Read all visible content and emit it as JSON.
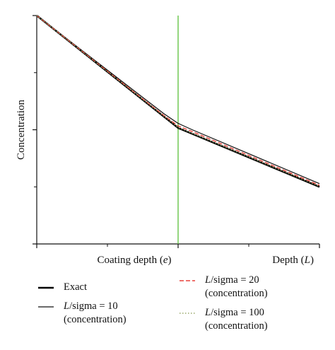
{
  "chart_data": {
    "type": "line",
    "xlabel_parts": [
      {
        "text": "Coating depth (",
        "italic": false
      },
      {
        "text": "e",
        "italic": true
      },
      {
        "text": ")",
        "italic": false
      }
    ],
    "xlabel_end_parts": [
      {
        "text": "Depth (",
        "italic": false
      },
      {
        "text": "L",
        "italic": true
      },
      {
        "text": ")",
        "italic": false
      }
    ],
    "ylabel": "Concentration",
    "xlim": [
      0,
      1
    ],
    "ylim": [
      0,
      1
    ],
    "coating_depth_x": 0.5,
    "grid": false,
    "legend_position": "bottom",
    "series": [
      {
        "name": "Exact",
        "label_lines": [
          "Exact"
        ],
        "color": "#000000",
        "style": "solid",
        "width": 2.6,
        "x": [
          0,
          0.5,
          1.0
        ],
        "y": [
          1.0,
          0.508,
          0.25
        ]
      },
      {
        "name": "L/sigma = 10 (concentration)",
        "label_lines": [
          "/sigma = 10",
          "(concentration)"
        ],
        "italic_prefix": "L",
        "color": "#111111",
        "style": "solid",
        "width": 1.2,
        "x": [
          0,
          0.45,
          0.5,
          0.55,
          1.0
        ],
        "y": [
          1.0,
          0.57,
          0.528,
          0.5,
          0.264
        ]
      },
      {
        "name": "L/sigma = 20 (concentration)",
        "label_lines": [
          "/sigma = 20",
          "(concentration)"
        ],
        "italic_prefix": "L",
        "color": "#e8413a",
        "style": "dashed",
        "width": 1.4,
        "x": [
          0,
          0.45,
          0.5,
          0.55,
          1.0
        ],
        "y": [
          1.0,
          0.562,
          0.517,
          0.492,
          0.257
        ]
      },
      {
        "name": "L/sigma = 100 (concentration)",
        "label_lines": [
          "/sigma = 100",
          "(concentration)"
        ],
        "italic_prefix": "L",
        "color": "#9aa86a",
        "style": "dotted",
        "width": 1.4,
        "x": [
          0,
          0.5,
          1.0
        ],
        "y": [
          1.0,
          0.51,
          0.252
        ]
      }
    ]
  },
  "colors": {
    "coating_line": "#5bbf3a",
    "axis": "#111111"
  }
}
